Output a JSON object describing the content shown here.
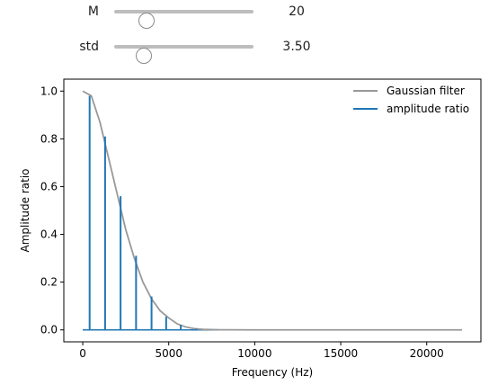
{
  "controls": {
    "m": {
      "label": "M",
      "value": 20,
      "value_text": "20",
      "min": 0,
      "max": 100
    },
    "std": {
      "label": "std",
      "value": 3.5,
      "value_text": "3.50",
      "min": 0,
      "max": 20
    }
  },
  "chart_data": {
    "type": "line",
    "xlabel": "Frequency (Hz)",
    "ylabel": "Amplitude ratio",
    "xlim": [
      -1100,
      23150
    ],
    "ylim": [
      -0.05,
      1.05
    ],
    "xticks": [
      0,
      5000,
      10000,
      15000,
      20000
    ],
    "yticks": [
      0.0,
      0.2,
      0.4,
      0.6,
      0.8,
      1.0
    ],
    "xtick_labels": [
      "0",
      "5000",
      "10000",
      "15000",
      "20000"
    ],
    "ytick_labels": [
      "0.0",
      "0.2",
      "0.4",
      "0.6",
      "0.8",
      "1.0"
    ],
    "legend": {
      "position": "top-right",
      "entries": [
        {
          "label": "Gaussian filter",
          "color": "#999999"
        },
        {
          "label": "amplitude ratio",
          "color": "#1f77b4"
        }
      ]
    },
    "gaussian_curve": {
      "name": "Gaussian filter",
      "color": "#999999",
      "x": [
        0,
        500,
        1000,
        1500,
        2000,
        2500,
        3000,
        3500,
        4000,
        4500,
        5000,
        5500,
        6000,
        6500,
        7000,
        8000,
        10000,
        15000,
        20000,
        22050
      ],
      "y": [
        1.0,
        0.98,
        0.87,
        0.72,
        0.57,
        0.42,
        0.3,
        0.2,
        0.13,
        0.08,
        0.05,
        0.025,
        0.012,
        0.005,
        0.002,
        0.0005,
        0.0,
        0.0,
        0.0,
        0.0
      ]
    },
    "amplitude_ratio": {
      "name": "amplitude ratio",
      "color": "#1f77b4",
      "x": [
        400,
        1300,
        2200,
        3100,
        4000,
        4850,
        5700,
        6600
      ],
      "y": [
        0.98,
        0.81,
        0.56,
        0.31,
        0.14,
        0.055,
        0.02,
        0.005
      ],
      "baseline_x": [
        0,
        22050
      ],
      "baseline_y": 0.0
    }
  }
}
